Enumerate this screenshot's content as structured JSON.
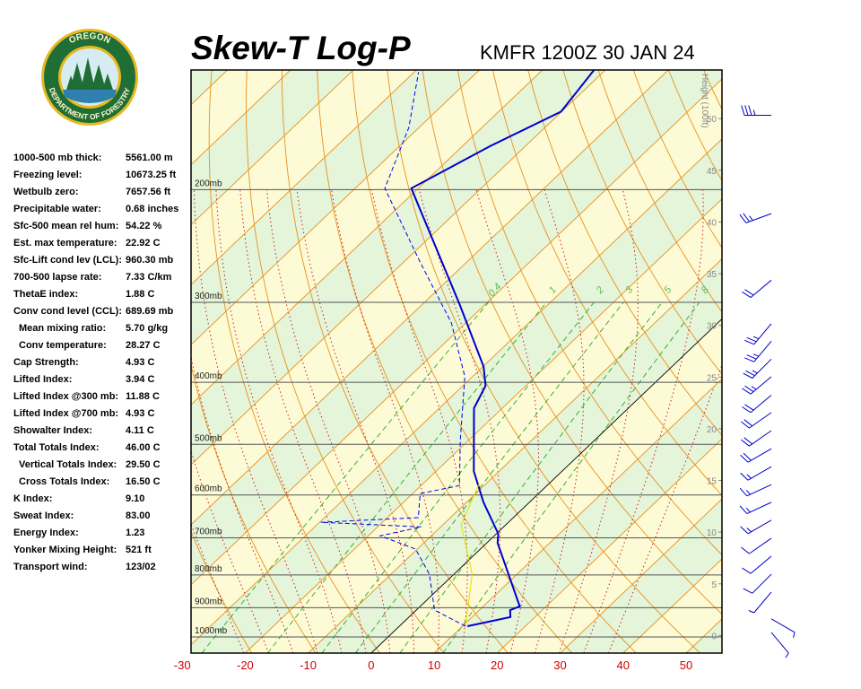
{
  "logo": {
    "top": "OREGON",
    "bottom": "DEPARTMENT OF FORESTRY"
  },
  "stats": [
    {
      "label": "1000-500 mb thick:",
      "value": "5561.00 m"
    },
    {
      "label": "Freezing level:",
      "value": "10673.25 ft"
    },
    {
      "label": "Wetbulb zero:",
      "value": "7657.56 ft"
    },
    {
      "label": "Precipitable water:",
      "value": "0.68 inches"
    },
    {
      "label": "Sfc-500 mean rel hum:",
      "value": "54.22 %"
    },
    {
      "label": "Est. max temperature:",
      "value": "22.92 C"
    },
    {
      "label": "Sfc-Lift cond lev (LCL):",
      "value": "960.30 mb"
    },
    {
      "label": "700-500 lapse rate:",
      "value": "7.33 C/km"
    },
    {
      "label": "ThetaE index:",
      "value": "1.88 C"
    },
    {
      "label": "Conv cond level (CCL):",
      "value": "689.69 mb"
    },
    {
      "label": "Mean mixing ratio:",
      "value": "5.70 g/kg"
    },
    {
      "label": "Conv temperature:",
      "value": "28.27 C"
    },
    {
      "label": "Cap Strength:",
      "value": "4.93 C"
    },
    {
      "label": "Lifted Index:",
      "value": "3.94 C"
    },
    {
      "label": "Lifted Index @300 mb:",
      "value": "11.88 C"
    },
    {
      "label": "Lifted Index @700 mb:",
      "value": "4.93 C"
    },
    {
      "label": "Showalter Index:",
      "value": "4.11 C"
    },
    {
      "label": "Total Totals Index:",
      "value": "46.00 C"
    },
    {
      "label": "Vertical Totals Index:",
      "value": "29.50 C"
    },
    {
      "label": "Cross Totals Index:",
      "value": "16.50 C"
    },
    {
      "label": "K Index:",
      "value": "9.10"
    },
    {
      "label": "Sweat Index:",
      "value": "83.00"
    },
    {
      "label": "Energy Index:",
      "value": "1.23"
    },
    {
      "label": "Yonker Mixing Height:",
      "value": "521 ft"
    },
    {
      "label": "Transport wind:",
      "value": "123/02"
    }
  ],
  "chart_data": {
    "type": "skew-t",
    "title": "Skew-T Log-P",
    "subtitle": "KMFR 1200Z 30 JAN 24",
    "y_scale": "log",
    "xlim": [
      -28.6,
      55.7
    ],
    "xticks": [
      -30,
      -20,
      -10,
      0,
      10,
      20,
      30,
      40,
      50
    ],
    "ylim": [
      1060,
      130
    ],
    "yticks": [
      {
        "value": 1000,
        "label": "1000mb"
      },
      {
        "value": 900,
        "label": "900mb"
      },
      {
        "value": 800,
        "label": "800mb"
      },
      {
        "value": 700,
        "label": "700mb"
      },
      {
        "value": 600,
        "label": "600mb"
      },
      {
        "value": 500,
        "label": "500mb"
      },
      {
        "value": 400,
        "label": "400mb"
      },
      {
        "value": 300,
        "label": "300mb"
      },
      {
        "value": 200,
        "label": "200mb"
      }
    ],
    "y2label": "Height (100ft)",
    "y2lim": [
      -1.7,
      54.7
    ],
    "y2ticks": [
      0,
      5,
      10,
      15,
      20,
      25,
      30,
      35,
      40,
      45,
      50
    ],
    "mixing_ratio_labels": [
      0.4,
      1,
      2,
      3,
      5,
      8
    ],
    "series": [
      {
        "color": "#0000cc",
        "style": "solid",
        "pressure": [
          962,
          931,
          908,
          896,
          713,
          690,
          616,
          551,
          439,
          405,
          378,
          303,
          199,
          171,
          151,
          130
        ],
        "values": [
          10.8,
          16.1,
          14.9,
          15.8,
          1.7,
          0.3,
          -7.3,
          -14.0,
          -24.5,
          -26.4,
          -29.9,
          -43.9,
          -71.1,
          -65.6,
          -60.1,
          -61.8
        ]
      },
      {
        "color": "#0000ee",
        "style": "dashed",
        "pressure": [
          962,
          908,
          798,
          729,
          695,
          673,
          662,
          651,
          597,
          580,
          492,
          392,
          323,
          258,
          199,
          160,
          131
        ],
        "values": [
          10.5,
          2.9,
          -3.9,
          -10.3,
          -18.1,
          -13.1,
          -29.8,
          -15.1,
          -18.8,
          -13.9,
          -21.4,
          -31.2,
          -42.3,
          -57.8,
          -75.3,
          -81.6,
          -89.3
        ]
      },
      {
        "color": "#e0e000",
        "style": "solid",
        "pressure": [
          953,
          798,
          668,
          578
        ],
        "values": [
          10.1,
          2.9,
          -7.1,
          -11.0
        ]
      }
    ],
    "winds": {
      "color": "#0000cc",
      "pressure": [
        153,
        218,
        277,
        324,
        345,
        368,
        392,
        419,
        446,
        476,
        508,
        542,
        578,
        616,
        657,
        701,
        748,
        798,
        851,
        937,
        984
      ],
      "direction": [
        270,
        250,
        230,
        220,
        220,
        225,
        230,
        230,
        235,
        235,
        240,
        240,
        245,
        245,
        240,
        235,
        230,
        225,
        220,
        120,
        140
      ],
      "speed": [
        35,
        25,
        20,
        25,
        25,
        25,
        25,
        20,
        20,
        20,
        20,
        15,
        15,
        15,
        15,
        10,
        10,
        10,
        5,
        5,
        5
      ]
    }
  }
}
